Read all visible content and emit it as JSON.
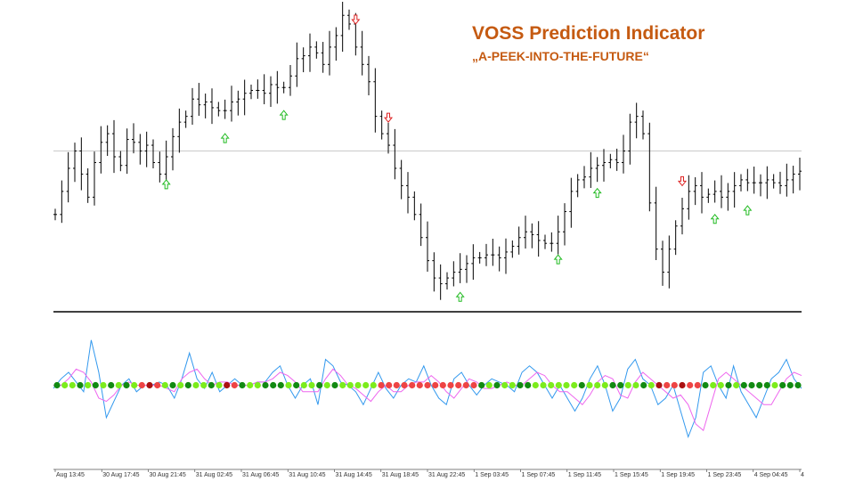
{
  "title": "VOSS Prediction Indicator",
  "subtitle": "„A-PEEK-INTO-THE-FUTURE“",
  "colors": {
    "title": "#c55a11",
    "price_bar": "#000000",
    "up_arrow": "#22bb22",
    "down_arrow": "#dd2222",
    "voss_line": "#3399ee",
    "filter_line": "#ee66ee",
    "dot_bright_green": "#7cec1c",
    "dot_dark_green": "#128a12",
    "dot_red": "#ee4444",
    "dot_dark_red": "#aa1111",
    "grid_line": "#aaaaaa"
  },
  "chart_data": [
    {
      "type": "ohlc",
      "panel": "price",
      "y_levels": {
        "min": 0,
        "max": 100,
        "horizontal_line": 52
      },
      "close_series": [
        30,
        38,
        46,
        52,
        44,
        36,
        48,
        55,
        58,
        50,
        47,
        56,
        55,
        52,
        54,
        48,
        44,
        50,
        57,
        62,
        64,
        70,
        68,
        69,
        67,
        66,
        66,
        69,
        70,
        72,
        73,
        73,
        72,
        75,
        74,
        74,
        78,
        84,
        85,
        88,
        86,
        82,
        88,
        92,
        99,
        96,
        88,
        82,
        76,
        64,
        58,
        54,
        46,
        40,
        36,
        30,
        22,
        14,
        8,
        6,
        8,
        10,
        11,
        13,
        15,
        15,
        16,
        16,
        15,
        17,
        19,
        22,
        24,
        23,
        21,
        20,
        20,
        24,
        31,
        38,
        42,
        43,
        46,
        47,
        48,
        49,
        48,
        52,
        62,
        64,
        58,
        34,
        18,
        10,
        18,
        26,
        32,
        38,
        40,
        36,
        37,
        38,
        36,
        38,
        40,
        42,
        41,
        41,
        41,
        42,
        41,
        40,
        42,
        44,
        45
      ],
      "signals": [
        {
          "index": 17,
          "direction": "up"
        },
        {
          "index": 26,
          "direction": "up"
        },
        {
          "index": 35,
          "direction": "up"
        },
        {
          "index": 46,
          "direction": "down"
        },
        {
          "index": 51,
          "direction": "down"
        },
        {
          "index": 62,
          "direction": "up"
        },
        {
          "index": 77,
          "direction": "up"
        },
        {
          "index": 83,
          "direction": "up"
        },
        {
          "index": 96,
          "direction": "down"
        },
        {
          "index": 101,
          "direction": "up"
        },
        {
          "index": 106,
          "direction": "up"
        }
      ]
    },
    {
      "type": "line",
      "panel": "indicator",
      "ylim": [
        -1,
        1
      ],
      "zero_level": 0,
      "series": [
        {
          "key": "voss",
          "values": [
            -0.05,
            0.1,
            0.2,
            0.05,
            -0.1,
            0.7,
            0.2,
            -0.5,
            -0.25,
            0.0,
            0.1,
            -0.1,
            0.0,
            0.0,
            0.05,
            0.0,
            -0.2,
            0.1,
            0.5,
            0.1,
            -0.05,
            0.2,
            -0.1,
            0.0,
            0.1,
            0.0,
            0.0,
            0.05,
            0.05,
            0.2,
            0.3,
            0.0,
            -0.2,
            0.0,
            0.1,
            -0.3,
            0.4,
            0.3,
            0.05,
            0.0,
            -0.1,
            -0.3,
            -0.05,
            0.2,
            -0.05,
            -0.2,
            0.0,
            0.1,
            0.05,
            0.3,
            0.0,
            -0.2,
            -0.3,
            0.1,
            0.2,
            0.0,
            -0.15,
            0.0,
            0.1,
            0.05,
            0.0,
            -0.1,
            0.2,
            0.3,
            0.2,
            0.0,
            -0.2,
            0.0,
            -0.2,
            -0.4,
            -0.2,
            0.1,
            0.3,
            0.0,
            -0.4,
            -0.2,
            0.25,
            0.4,
            0.1,
            0.0,
            -0.3,
            -0.2,
            0.0,
            -0.4,
            -0.8,
            -0.5,
            0.2,
            0.3,
            0.0,
            -0.2,
            0.3,
            -0.1,
            -0.3,
            -0.5,
            -0.2,
            0.1,
            0.2,
            0.4,
            0.1,
            -0.05
          ]
        },
        {
          "key": "filter",
          "values": [
            0.0,
            0.0,
            0.1,
            0.25,
            0.2,
            0.05,
            -0.2,
            -0.25,
            -0.15,
            0.0,
            0.05,
            0.0,
            0.0,
            0.0,
            0.0,
            -0.05,
            -0.1,
            0.1,
            0.2,
            0.25,
            0.1,
            0.0,
            0.05,
            0.05,
            0.0,
            0.0,
            0.0,
            0.05,
            0.05,
            0.1,
            0.2,
            0.15,
            0.05,
            -0.1,
            -0.1,
            -0.1,
            0.1,
            0.25,
            0.15,
            0.0,
            -0.05,
            -0.15,
            -0.25,
            -0.1,
            0.0,
            -0.1,
            -0.1,
            0.0,
            0.05,
            0.05,
            0.15,
            0.05,
            -0.1,
            -0.2,
            -0.05,
            0.1,
            0.05,
            -0.05,
            -0.05,
            0.0,
            0.05,
            0.0,
            0.0,
            0.1,
            0.2,
            0.15,
            0.0,
            -0.1,
            -0.1,
            -0.2,
            -0.3,
            -0.15,
            0.05,
            0.15,
            0.1,
            -0.15,
            -0.2,
            0.05,
            0.2,
            0.1,
            0.0,
            -0.1,
            -0.2,
            -0.15,
            -0.3,
            -0.6,
            -0.7,
            -0.3,
            0.1,
            0.2,
            0.1,
            0.0,
            -0.1,
            -0.2,
            -0.3,
            -0.3,
            -0.1,
            0.1,
            0.2,
            0.15
          ]
        }
      ],
      "dot_states": [
        "G",
        "B",
        "B",
        "G",
        "B",
        "G",
        "B",
        "G",
        "B",
        "G",
        "B",
        "R",
        "D",
        "R",
        "B",
        "G",
        "B",
        "G",
        "B",
        "B",
        "G",
        "B",
        "D",
        "R",
        "G",
        "B",
        "B",
        "G",
        "G",
        "G",
        "B",
        "G",
        "B",
        "B",
        "G",
        "B",
        "G",
        "B",
        "B",
        "B",
        "B",
        "B",
        "R",
        "R",
        "R",
        "R",
        "R",
        "R",
        "R",
        "R",
        "R",
        "R",
        "R",
        "R",
        "R",
        "G",
        "B",
        "G",
        "B",
        "B",
        "G",
        "G",
        "B",
        "B",
        "B",
        "B",
        "B",
        "B",
        "G",
        "B",
        "B",
        "B",
        "G",
        "G",
        "B",
        "B",
        "G",
        "B",
        "D",
        "R",
        "R",
        "D",
        "R",
        "R",
        "G",
        "B",
        "B",
        "G",
        "B",
        "G",
        "G",
        "G",
        "G",
        "B",
        "G",
        "G",
        "G"
      ]
    }
  ],
  "x_axis": {
    "tick_labels": [
      "Aug 13:45",
      "30 Aug 17:45",
      "30 Aug 21:45",
      "31 Aug 02:45",
      "31 Aug 06:45",
      "31 Aug 10:45",
      "31 Aug 14:45",
      "31 Aug 18:45",
      "31 Aug 22:45",
      "1 Sep 03:45",
      "1 Sep 07:45",
      "1 Sep 11:45",
      "1 Sep 15:45",
      "1 Sep 19:45",
      "1 Sep 23:45",
      "4 Sep 04:45",
      "4"
    ]
  }
}
